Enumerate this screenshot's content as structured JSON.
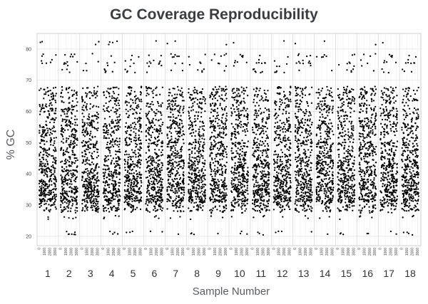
{
  "chart_data": {
    "type": "scatter",
    "title": "GC Coverage Reproducibility",
    "xlabel": "Sample Number",
    "ylabel": "% GC",
    "ylim": [
      17,
      85
    ],
    "yticks": [
      20,
      30,
      40,
      50,
      60,
      70,
      80
    ],
    "grid": true,
    "legend": "none",
    "panel_x_ticks": [
      "0",
      "1000",
      "2000",
      "3000"
    ],
    "panel_x_range": [
      0,
      3200
    ],
    "samples": [
      "1",
      "2",
      "3",
      "4",
      "5",
      "6",
      "7",
      "8",
      "9",
      "10",
      "11",
      "12",
      "13",
      "14",
      "15",
      "16",
      "17",
      "18"
    ],
    "points_per_sample": 420,
    "distribution": {
      "dense_band": [
        30,
        57
      ],
      "upper_scatter": [
        57,
        68
      ],
      "outliers": [
        21,
        26,
        28,
        73,
        75,
        76,
        78,
        82
      ]
    }
  }
}
